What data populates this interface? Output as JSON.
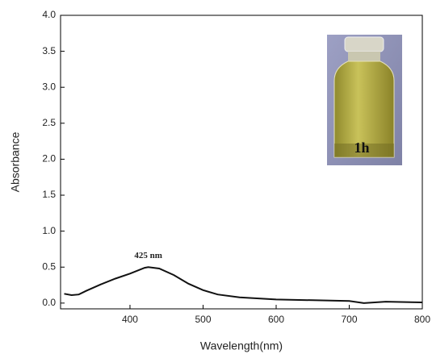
{
  "chart_data": {
    "type": "line",
    "x_label": "Wavelength(nm)",
    "y_label": "Absorbance",
    "x": [
      310,
      320,
      330,
      340,
      360,
      380,
      400,
      420,
      425,
      440,
      460,
      480,
      500,
      520,
      550,
      600,
      650,
      700,
      720,
      750,
      800
    ],
    "values": [
      0.13,
      0.11,
      0.12,
      0.17,
      0.26,
      0.34,
      0.41,
      0.49,
      0.5,
      0.48,
      0.39,
      0.27,
      0.18,
      0.12,
      0.08,
      0.05,
      0.04,
      0.03,
      0.0,
      0.02,
      0.01
    ],
    "color": "#111111",
    "xlim": [
      305,
      800
    ],
    "ylim": [
      -0.08,
      4.0
    ],
    "xticks": [
      400,
      500,
      600,
      700,
      800
    ],
    "yticks": [
      {
        "value": 0,
        "label": "0.0"
      },
      0.5,
      {
        "value": 1,
        "label": "1.0"
      },
      1.5,
      {
        "value": 2,
        "label": "2.0"
      },
      2.5,
      {
        "value": 3,
        "label": "3.0"
      },
      3.5,
      {
        "value": 4,
        "label": "4.0"
      }
    ],
    "annotations": [
      {
        "text": "425 nm",
        "x": 425,
        "y": 0.5
      }
    ],
    "inset_label": "1h"
  }
}
